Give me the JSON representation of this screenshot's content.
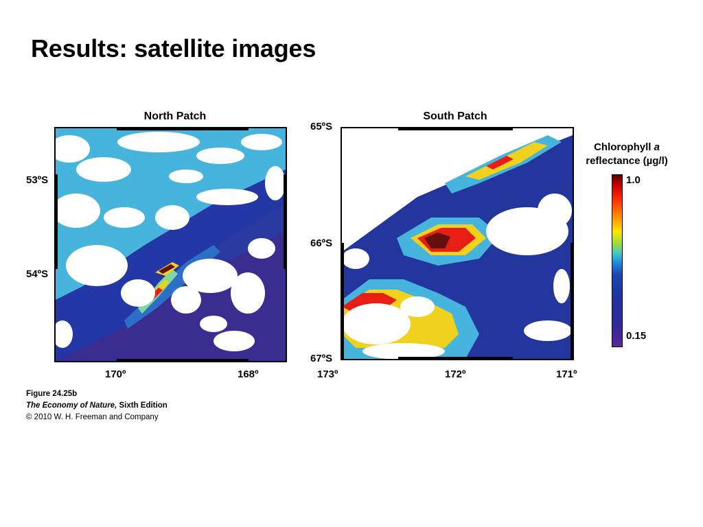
{
  "slide": {
    "title": "Results: satellite images"
  },
  "north": {
    "title": "North Patch",
    "lat_labels": [
      "53ºS",
      "54ºS"
    ],
    "lon_labels": [
      "170º",
      "168º"
    ]
  },
  "south": {
    "title": "South Patch",
    "lat_labels": [
      "65ºS",
      "66ºS",
      "67ºS"
    ],
    "lon_labels": [
      "173º",
      "172º",
      "171º"
    ]
  },
  "legend": {
    "title_pre": "Chlorophyll ",
    "title_italic": "a",
    "title_line2": "reflectance (µg/l)",
    "max_label": "1.0",
    "min_label": "0.15"
  },
  "caption": {
    "figure": "Figure 24.25b",
    "book_italic": "The Economy of Nature,",
    "book_rest": " Sixth Edition",
    "copyright": "© 2010 W. H. Freeman and Company"
  },
  "colors": {
    "cloud": "#ffffff",
    "ocean": "#23379b",
    "ocean_deep": "#3a2a8c",
    "low": "#46b4dc",
    "mid": "#f0d21e",
    "high": "#e61e14",
    "peak": "#641010"
  }
}
